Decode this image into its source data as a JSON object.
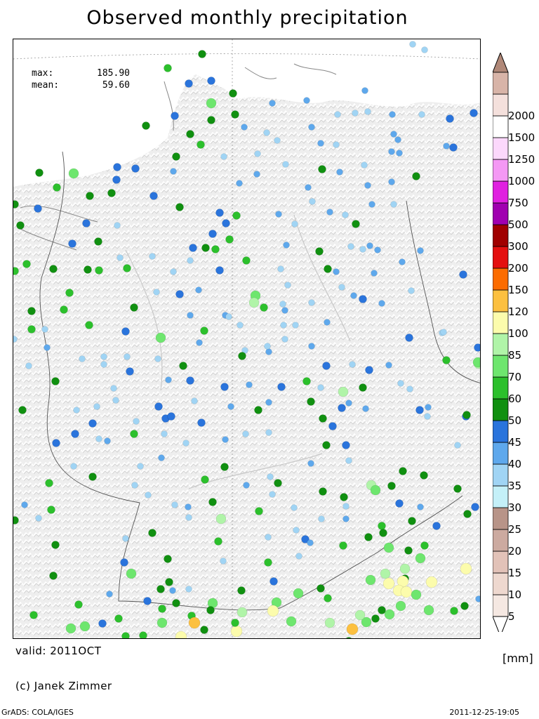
{
  "title": "Observed monthly precipitation",
  "stats": {
    "max_label": "max:",
    "max_value": "185.90",
    "mean_label": "mean:",
    "mean_value": "59.60"
  },
  "valid": "valid: 2011OCT",
  "copyright": "(c) Janek Zimmer",
  "software": "GrADS: COLA/IGES",
  "timestamp": "2011-12-25-19:05",
  "unit": "[mm]",
  "legend": [
    {
      "label": "5",
      "color": "#f5e8e2"
    },
    {
      "label": "10",
      "color": "#eed8cf"
    },
    {
      "label": "15",
      "color": "#e2c2b8"
    },
    {
      "label": "20",
      "color": "#ccaaa0"
    },
    {
      "label": "25",
      "color": "#b89488"
    },
    {
      "label": "30",
      "color": "#c4f0f8"
    },
    {
      "label": "35",
      "color": "#a0d4f4"
    },
    {
      "label": "40",
      "color": "#5ea8ec"
    },
    {
      "label": "45",
      "color": "#2a74dc"
    },
    {
      "label": "50",
      "color": "#109010"
    },
    {
      "label": "60",
      "color": "#2cc02c"
    },
    {
      "label": "70",
      "color": "#6ee66e"
    },
    {
      "label": "85",
      "color": "#b0f4a8"
    },
    {
      "label": "100",
      "color": "#fcfcac"
    },
    {
      "label": "120",
      "color": "#fcc040"
    },
    {
      "label": "150",
      "color": "#fc6c00"
    },
    {
      "label": "200",
      "color": "#e41010"
    },
    {
      "label": "300",
      "color": "#a00000"
    },
    {
      "label": "500",
      "color": "#a000b0"
    },
    {
      "label": "750",
      "color": "#e020e0"
    },
    {
      "label": "1000",
      "color": "#f498f4"
    },
    {
      "label": "1250",
      "color": "#fcd8fc"
    },
    {
      "label": "1500",
      "color": "#ffffff"
    },
    {
      "label": "2000",
      "color": "#f4e0dc"
    },
    {
      "label": "",
      "color": "#d8b4a8"
    }
  ],
  "cap_top_color": "#b08878",
  "stations": [
    [
      238,
      96,
      5
    ],
    [
      287,
      76,
      4
    ],
    [
      268,
      118,
      3
    ],
    [
      300,
      114,
      3
    ],
    [
      300,
      146,
      6
    ],
    [
      331,
      132,
      4
    ],
    [
      334,
      162,
      4
    ],
    [
      207,
      178,
      4
    ],
    [
      248,
      164,
      3
    ],
    [
      300,
      170,
      4
    ],
    [
      270,
      190,
      4
    ],
    [
      250,
      222,
      4
    ],
    [
      246,
      243,
      2
    ],
    [
      192,
      239,
      3
    ],
    [
      166,
      237,
      3
    ],
    [
      165,
      255,
      3
    ],
    [
      104,
      246,
      6
    ],
    [
      55,
      245,
      4
    ],
    [
      80,
      266,
      5
    ],
    [
      127,
      278,
      4
    ],
    [
      158,
      274,
      4
    ],
    [
      218,
      278,
      3
    ],
    [
      53,
      296,
      3
    ],
    [
      20,
      290,
      4
    ],
    [
      28,
      320,
      4
    ],
    [
      122,
      317,
      3
    ],
    [
      166,
      320,
      1
    ],
    [
      102,
      346,
      3
    ],
    [
      139,
      343,
      4
    ],
    [
      170,
      366,
      1
    ],
    [
      255,
      294,
      4
    ],
    [
      312,
      302,
      3
    ],
    [
      336,
      306,
      5
    ],
    [
      321,
      317,
      3
    ],
    [
      302,
      332,
      3
    ],
    [
      326,
      340,
      5
    ],
    [
      274,
      352,
      3
    ],
    [
      292,
      352,
      4
    ],
    [
      306,
      354,
      5
    ],
    [
      216,
      364,
      1
    ],
    [
      270,
      370,
      1
    ],
    [
      350,
      370,
      5
    ],
    [
      180,
      381,
      5
    ],
    [
      140,
      384,
      5
    ],
    [
      124,
      383,
      4
    ],
    [
      37,
      375,
      5
    ],
    [
      20,
      385,
      5
    ],
    [
      75,
      382,
      4
    ],
    [
      98,
      416,
      5
    ],
    [
      90,
      440,
      5
    ],
    [
      44,
      442,
      4
    ],
    [
      190,
      437,
      4
    ],
    [
      255,
      418,
      3
    ],
    [
      282,
      412,
      2
    ],
    [
      363,
      420,
      6
    ],
    [
      361,
      430,
      7
    ],
    [
      246,
      386,
      1
    ],
    [
      222,
      415,
      1
    ],
    [
      270,
      448,
      2
    ],
    [
      320,
      448,
      2
    ],
    [
      341,
      462,
      1
    ],
    [
      290,
      470,
      5
    ],
    [
      126,
      462,
      5
    ],
    [
      178,
      471,
      3
    ],
    [
      228,
      480,
      6
    ],
    [
      44,
      468,
      5
    ],
    [
      63,
      468,
      1
    ],
    [
      19,
      482,
      1
    ],
    [
      66,
      494,
      2
    ],
    [
      40,
      520,
      1
    ],
    [
      116,
      510,
      1
    ],
    [
      147,
      507,
      1
    ],
    [
      147,
      518,
      1
    ],
    [
      184,
      528,
      3
    ],
    [
      180,
      507,
      1
    ],
    [
      224,
      510,
      1
    ],
    [
      260,
      520,
      4
    ],
    [
      283,
      487,
      2
    ],
    [
      348,
      498,
      1
    ],
    [
      344,
      506,
      4
    ],
    [
      382,
      500,
      2
    ],
    [
      403,
      462,
      1
    ],
    [
      405,
      482,
      1
    ],
    [
      375,
      437,
      5
    ],
    [
      380,
      492,
      1
    ],
    [
      354,
      547,
      2
    ],
    [
      319,
      550,
      3
    ],
    [
      276,
      570,
      1
    ],
    [
      270,
      541,
      3
    ],
    [
      239,
      540,
      2
    ],
    [
      225,
      578,
      3
    ],
    [
      193,
      599,
      1
    ],
    [
      235,
      595,
      3
    ],
    [
      243,
      592,
      3
    ],
    [
      286,
      601,
      3
    ],
    [
      328,
      578,
      2
    ],
    [
      367,
      583,
      4
    ],
    [
      382,
      572,
      2
    ],
    [
      400,
      550,
      3
    ],
    [
      436,
      542,
      5
    ],
    [
      442,
      571,
      4
    ],
    [
      488,
      557,
      7
    ],
    [
      456,
      551,
      1
    ],
    [
      464,
      520,
      3
    ],
    [
      516,
      551,
      4
    ],
    [
      501,
      518,
      1
    ],
    [
      525,
      526,
      3
    ],
    [
      553,
      519,
      2
    ],
    [
      570,
      545,
      1
    ],
    [
      583,
      553,
      1
    ],
    [
      597,
      583,
      3
    ],
    [
      609,
      579,
      2
    ],
    [
      582,
      480,
      3
    ],
    [
      629,
      473,
      1
    ],
    [
      635,
      512,
      5
    ],
    [
      680,
      494,
      3
    ],
    [
      681,
      517,
      7
    ],
    [
      663,
      592,
      3
    ],
    [
      651,
      633,
      1
    ],
    [
      608,
      592,
      1
    ],
    [
      520,
      581,
      2
    ],
    [
      496,
      573,
      2
    ],
    [
      459,
      595,
      4
    ],
    [
      486,
      580,
      3
    ],
    [
      473,
      606,
      3
    ],
    [
      464,
      633,
      4
    ],
    [
      492,
      633,
      3
    ],
    [
      496,
      655,
      1
    ],
    [
      442,
      659,
      2
    ],
    [
      382,
      615,
      1
    ],
    [
      349,
      617,
      1
    ],
    [
      320,
      625,
      2
    ],
    [
      264,
      630,
      1
    ],
    [
      229,
      651,
      2
    ],
    [
      199,
      663,
      1
    ],
    [
      191,
      690,
      1
    ],
    [
      131,
      678,
      4
    ],
    [
      104,
      663,
      1
    ],
    [
      79,
      630,
      3
    ],
    [
      106,
      617,
      3
    ],
    [
      131,
      602,
      3
    ],
    [
      152,
      627,
      2
    ],
    [
      108,
      583,
      1
    ],
    [
      78,
      542,
      4
    ],
    [
      31,
      583,
      4
    ],
    [
      137,
      578,
      1
    ],
    [
      161,
      552,
      1
    ],
    [
      164,
      569,
      1
    ],
    [
      233,
      617,
      1
    ],
    [
      248,
      718,
      1
    ],
    [
      210,
      704,
      1
    ],
    [
      267,
      721,
      2
    ],
    [
      268,
      736,
      1
    ],
    [
      314,
      738,
      7
    ],
    [
      291,
      682,
      5
    ],
    [
      302,
      714,
      4
    ],
    [
      319,
      664,
      4
    ],
    [
      350,
      690,
      2
    ],
    [
      384,
      678,
      1
    ],
    [
      395,
      687,
      4
    ],
    [
      368,
      727,
      5
    ],
    [
      387,
      703,
      1
    ],
    [
      418,
      722,
      1
    ],
    [
      421,
      754,
      1
    ],
    [
      434,
      767,
      3
    ],
    [
      441,
      772,
      2
    ],
    [
      457,
      738,
      1
    ],
    [
      459,
      699,
      4
    ],
    [
      489,
      707,
      4
    ],
    [
      492,
      720,
      1
    ],
    [
      492,
      738,
      2
    ],
    [
      488,
      776,
      5
    ],
    [
      528,
      690,
      7
    ],
    [
      534,
      697,
      6
    ],
    [
      557,
      691,
      4
    ],
    [
      573,
      670,
      4
    ],
    [
      603,
      676,
      4
    ],
    [
      568,
      716,
      3
    ],
    [
      598,
      721,
      2
    ],
    [
      621,
      748,
      3
    ],
    [
      651,
      695,
      4
    ],
    [
      676,
      721,
      3
    ],
    [
      665,
      731,
      4
    ],
    [
      586,
      741,
      4
    ],
    [
      543,
      748,
      5
    ],
    [
      545,
      758,
      4
    ],
    [
      524,
      764,
      4
    ],
    [
      553,
      779,
      6
    ],
    [
      581,
      783,
      4
    ],
    [
      604,
      776,
      5
    ],
    [
      598,
      794,
      6
    ],
    [
      576,
      809,
      7
    ],
    [
      548,
      816,
      7
    ],
    [
      527,
      825,
      6
    ],
    [
      576,
      823,
      4
    ],
    [
      573,
      827,
      8
    ],
    [
      553,
      830,
      8
    ],
    [
      567,
      840,
      8
    ],
    [
      578,
      842,
      8
    ],
    [
      592,
      846,
      6
    ],
    [
      614,
      828,
      8
    ],
    [
      663,
      809,
      8
    ],
    [
      661,
      862,
      4
    ],
    [
      681,
      852,
      2
    ],
    [
      646,
      869,
      5
    ],
    [
      610,
      868,
      6
    ],
    [
      570,
      862,
      6
    ],
    [
      554,
      874,
      6
    ],
    [
      543,
      868,
      4
    ],
    [
      534,
      880,
      4
    ],
    [
      521,
      885,
      6
    ],
    [
      512,
      875,
      7
    ],
    [
      501,
      895,
      9
    ],
    [
      496,
      912,
      4
    ],
    [
      469,
      886,
      7
    ],
    [
      466,
      851,
      5
    ],
    [
      456,
      837,
      4
    ],
    [
      424,
      844,
      6
    ],
    [
      414,
      884,
      6
    ],
    [
      393,
      857,
      6
    ],
    [
      388,
      869,
      8
    ],
    [
      344,
      871,
      7
    ],
    [
      336,
      898,
      8
    ],
    [
      334,
      886,
      5
    ],
    [
      302,
      858,
      6
    ],
    [
      299,
      868,
      4
    ],
    [
      272,
      876,
      5
    ],
    [
      276,
      886,
      9
    ],
    [
      290,
      896,
      4
    ],
    [
      257,
      906,
      8
    ],
    [
      230,
      886,
      6
    ],
    [
      230,
      866,
      5
    ],
    [
      250,
      858,
      4
    ],
    [
      268,
      838,
      1
    ],
    [
      245,
      840,
      2
    ],
    [
      240,
      828,
      4
    ],
    [
      228,
      838,
      4
    ],
    [
      209,
      855,
      3
    ],
    [
      203,
      904,
      5
    ],
    [
      178,
      905,
      5
    ],
    [
      168,
      880,
      5
    ],
    [
      145,
      887,
      3
    ],
    [
      120,
      891,
      6
    ],
    [
      100,
      894,
      6
    ],
    [
      47,
      875,
      5
    ],
    [
      111,
      860,
      5
    ],
    [
      155,
      845,
      2
    ],
    [
      186,
      816,
      6
    ],
    [
      176,
      800,
      3
    ],
    [
      75,
      819,
      4
    ],
    [
      78,
      775,
      4
    ],
    [
      178,
      766,
      1
    ],
    [
      216,
      758,
      4
    ],
    [
      238,
      795,
      4
    ],
    [
      310,
      770,
      5
    ],
    [
      317,
      798,
      1
    ],
    [
      343,
      840,
      4
    ],
    [
      381,
      764,
      1
    ],
    [
      381,
      800,
      5
    ],
    [
      389,
      827,
      3
    ],
    [
      425,
      791,
      1
    ],
    [
      69,
      687,
      5
    ],
    [
      72,
      725,
      5
    ],
    [
      54,
      737,
      1
    ],
    [
      20,
      740,
      4
    ],
    [
      34,
      718,
      2
    ],
    [
      190,
      617,
      5
    ],
    [
      140,
      624,
      1
    ],
    [
      285,
      205,
      5
    ],
    [
      318,
      222,
      1
    ],
    [
      347,
      180,
      2
    ],
    [
      379,
      188,
      1
    ],
    [
      387,
      146,
      2
    ],
    [
      436,
      142,
      2
    ],
    [
      443,
      180,
      2
    ],
    [
      480,
      162,
      1
    ],
    [
      523,
      158,
      1
    ],
    [
      519,
      128,
      2
    ],
    [
      505,
      160,
      1
    ],
    [
      558,
      162,
      2
    ],
    [
      560,
      190,
      2
    ],
    [
      566,
      198,
      2
    ],
    [
      568,
      217,
      2
    ],
    [
      557,
      215,
      2
    ],
    [
      635,
      207,
      2
    ],
    [
      592,
      250,
      4
    ],
    [
      557,
      258,
      2
    ],
    [
      518,
      234,
      1
    ],
    [
      523,
      263,
      2
    ],
    [
      483,
      244,
      2
    ],
    [
      456,
      203,
      2
    ],
    [
      406,
      233,
      1
    ],
    [
      394,
      199,
      1
    ],
    [
      366,
      218,
      1
    ],
    [
      365,
      247,
      2
    ],
    [
      340,
      260,
      2
    ],
    [
      438,
      266,
      2
    ],
    [
      444,
      286,
      1
    ],
    [
      458,
      240,
      4
    ],
    [
      478,
      205,
      1
    ],
    [
      469,
      301,
      2
    ],
    [
      491,
      305,
      1
    ],
    [
      529,
      290,
      2
    ],
    [
      560,
      290,
      1
    ],
    [
      506,
      318,
      4
    ],
    [
      526,
      349,
      2
    ],
    [
      537,
      355,
      2
    ],
    [
      516,
      354,
      1
    ],
    [
      499,
      350,
      1
    ],
    [
      478,
      386,
      2
    ],
    [
      454,
      357,
      4
    ],
    [
      419,
      318,
      1
    ],
    [
      396,
      304,
      2
    ],
    [
      407,
      348,
      2
    ],
    [
      399,
      382,
      1
    ],
    [
      466,
      382,
      4
    ],
    [
      486,
      408,
      1
    ],
    [
      503,
      420,
      2
    ],
    [
      532,
      388,
      2
    ],
    [
      572,
      372,
      2
    ],
    [
      598,
      356,
      2
    ],
    [
      585,
      413,
      1
    ],
    [
      543,
      431,
      2
    ],
    [
      516,
      425,
      3
    ],
    [
      465,
      458,
      2
    ],
    [
      443,
      492,
      2
    ],
    [
      420,
      462,
      1
    ],
    [
      405,
      441,
      2
    ],
    [
      409,
      405,
      1
    ],
    [
      402,
      432,
      1
    ],
    [
      443,
      430,
      1
    ],
    [
      325,
      450,
      1
    ],
    [
      312,
      384,
      3
    ],
    [
      600,
      162,
      1
    ],
    [
      645,
      209,
      3
    ],
    [
      674,
      160,
      3
    ],
    [
      640,
      168,
      3
    ],
    [
      587,
      62,
      1
    ],
    [
      604,
      70,
      1
    ],
    [
      631,
      472,
      1
    ],
    [
      659,
      390,
      3
    ],
    [
      664,
      590,
      4
    ],
    [
      680,
      515,
      6
    ]
  ]
}
